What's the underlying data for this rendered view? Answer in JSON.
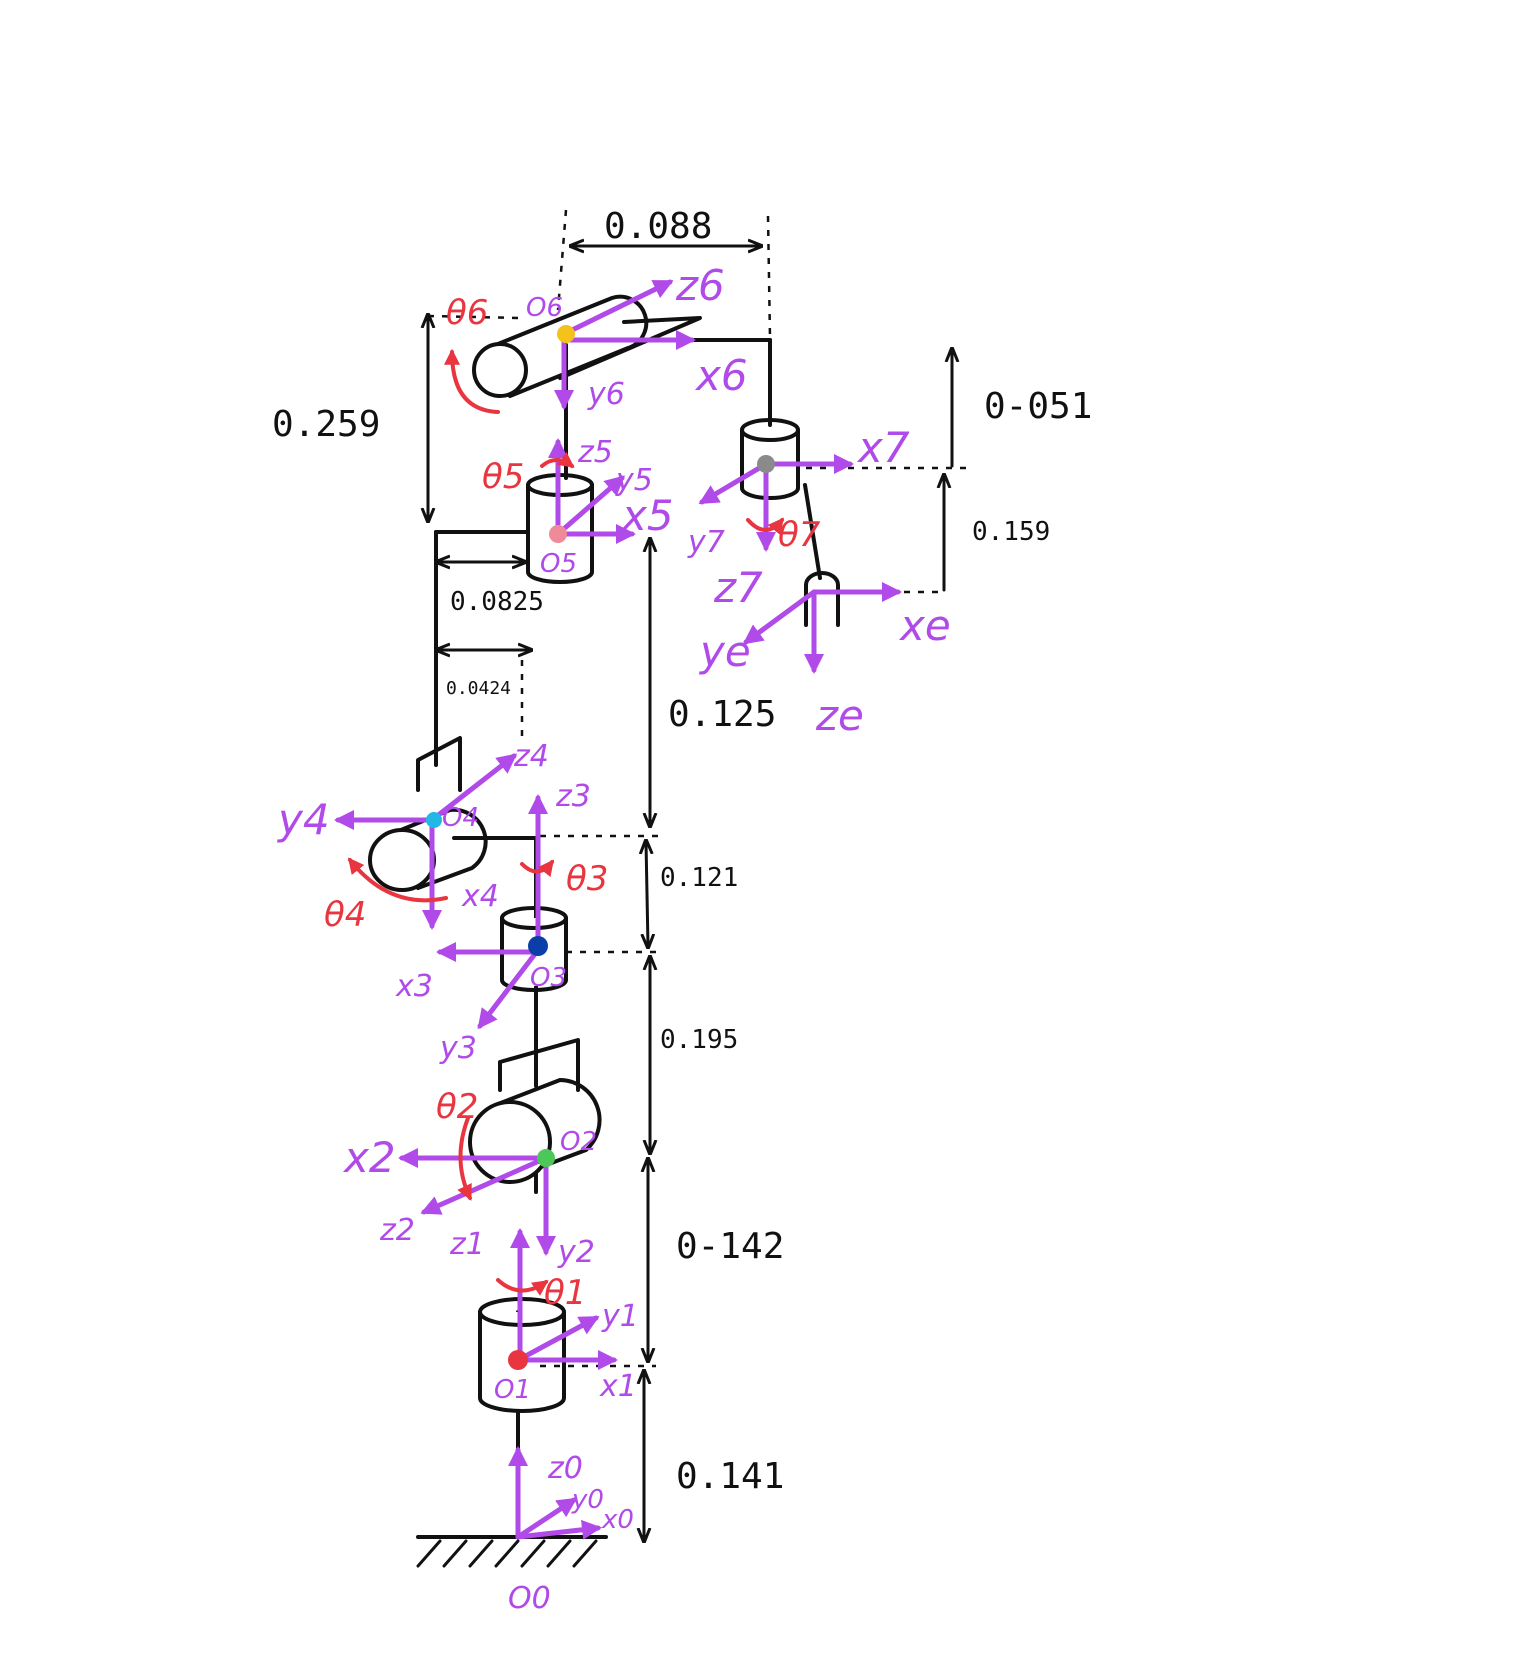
{
  "colors": {
    "ink": "#111111",
    "axis": "#b04ae8",
    "rotation": "#e8353f",
    "joint_1": "#e8353f",
    "joint_2": "#4cc85a",
    "joint_3": "#0b3fa8",
    "joint_4": "#22b8e6",
    "joint_5": "#f08a9a",
    "joint_6": "#f4c21a",
    "joint_7": "#8a8a8a"
  },
  "dimensions": {
    "d_0_088": "0.088",
    "d_0_259": "0.259",
    "d_0_051": "0-051",
    "d_0_159": "0.159",
    "d_0_0825": "0.0825",
    "d_0_0424": "0.0424",
    "d_0_125": "0.125",
    "d_0_121": "0.121",
    "d_0_195": "0.195",
    "d_0_142": "0-142",
    "d_0_141": "0.141"
  },
  "frames": {
    "base": {
      "z": "z0",
      "y": "y0",
      "x": "x0",
      "origin": "O0"
    },
    "f1": {
      "z": "z1",
      "y": "y1",
      "x": "x1",
      "origin": "O1",
      "theta": "θ1"
    },
    "f2": {
      "z": "z2",
      "y": "y2",
      "x": "x2",
      "origin": "O2",
      "theta": "θ2"
    },
    "f3": {
      "z": "z3",
      "y": "y3",
      "x": "x3",
      "origin": "O3",
      "theta": "θ3"
    },
    "f4": {
      "z": "z4",
      "y": "y4",
      "x": "x4",
      "origin": "O4",
      "theta": "θ4"
    },
    "f5": {
      "z": "z5",
      "y": "y5",
      "x": "x5",
      "origin": "O5",
      "theta": "θ5"
    },
    "f6": {
      "z": "z6",
      "y": "y6",
      "x": "x6",
      "origin": "O6",
      "theta": "θ6"
    },
    "f7": {
      "z": "z7",
      "y": "y7",
      "x": "x7",
      "theta": "θ7"
    },
    "fe": {
      "z": "ze",
      "y": "ye",
      "x": "xe"
    }
  }
}
